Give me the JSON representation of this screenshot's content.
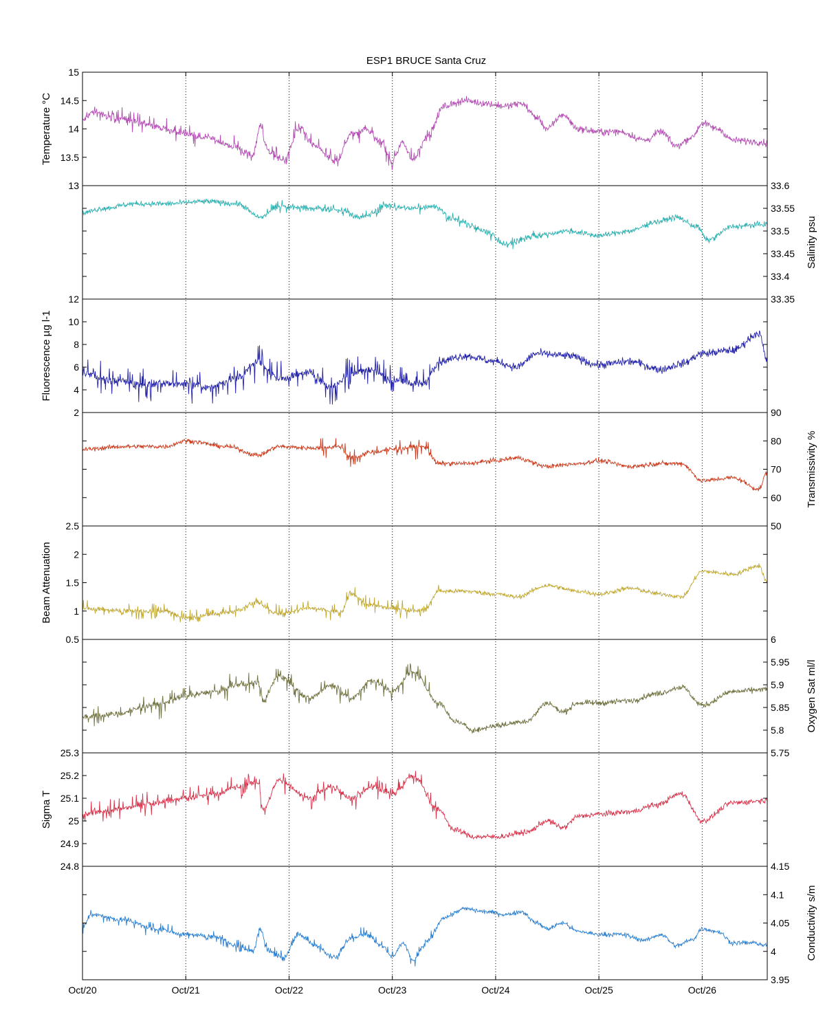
{
  "title": "ESP1 BRUCE Santa Cruz",
  "x_ticks": [
    "Oct/20",
    "Oct/21",
    "Oct/22",
    "Oct/23",
    "Oct/24",
    "Oct/25",
    "Oct/26"
  ],
  "chart_data": [
    {
      "type": "line",
      "name": "temperature",
      "label": "Temperature °C",
      "axis": "left",
      "color": "#b24cb2",
      "ylim": [
        13,
        15
      ],
      "ticks": [
        "13",
        "13.5",
        "14",
        "14.5",
        "15"
      ],
      "tick_values": [
        13,
        13.5,
        14,
        14.5,
        15
      ],
      "x_days": [
        0,
        0.1,
        0.3,
        0.6,
        0.9,
        1.2,
        1.45,
        1.65,
        1.72,
        1.8,
        1.95,
        2.1,
        2.25,
        2.45,
        2.6,
        2.75,
        2.9,
        3.0,
        3.1,
        3.2,
        3.35,
        3.5,
        3.7,
        3.9,
        4.1,
        4.25,
        4.4,
        4.5,
        4.65,
        4.8,
        5.0,
        5.2,
        5.45,
        5.6,
        5.75,
        5.9,
        6.0,
        6.15,
        6.3,
        6.5,
        6.63
      ],
      "y": [
        14.15,
        14.3,
        14.2,
        14.1,
        13.95,
        13.85,
        13.7,
        13.55,
        14.05,
        13.6,
        13.45,
        14.0,
        13.7,
        13.4,
        13.9,
        14.0,
        13.75,
        13.4,
        13.75,
        13.45,
        13.9,
        14.4,
        14.5,
        14.45,
        14.4,
        14.45,
        14.2,
        14.0,
        14.25,
        14.0,
        13.95,
        13.95,
        13.8,
        13.95,
        13.7,
        13.85,
        14.1,
        14.0,
        13.8,
        13.78,
        13.75
      ],
      "noise": 0.06,
      "spikes": 0.18,
      "spike_range": [
        0,
        3.4
      ]
    },
    {
      "type": "line",
      "name": "salinity",
      "label": "Salinity psu",
      "axis": "right",
      "color": "#2ab0b0",
      "ylim": [
        33.35,
        33.6
      ],
      "ticks": [
        "33.35",
        "33.4",
        "33.45",
        "33.5",
        "33.55",
        "33.6"
      ],
      "tick_values": [
        33.35,
        33.4,
        33.45,
        33.5,
        33.55,
        33.6
      ],
      "x_days": [
        0,
        0.2,
        0.5,
        0.8,
        1.2,
        1.5,
        1.72,
        1.9,
        2.2,
        2.5,
        2.7,
        2.95,
        3.2,
        3.4,
        3.6,
        3.9,
        4.1,
        4.4,
        4.7,
        5.0,
        5.3,
        5.55,
        5.75,
        5.95,
        6.05,
        6.3,
        6.63
      ],
      "y": [
        33.54,
        33.55,
        33.56,
        33.56,
        33.565,
        33.56,
        33.53,
        33.555,
        33.55,
        33.545,
        33.53,
        33.555,
        33.55,
        33.555,
        33.525,
        33.5,
        33.47,
        33.49,
        33.5,
        33.49,
        33.5,
        33.52,
        33.53,
        33.51,
        33.48,
        33.51,
        33.515
      ],
      "noise": 0.006,
      "spikes": 0.012,
      "spike_range": [
        1.7,
        4.4
      ]
    },
    {
      "type": "line",
      "name": "fluorescence",
      "label": "Fluorescence µg l-1",
      "axis": "left",
      "color": "#2020a8",
      "ylim": [
        2,
        12
      ],
      "ticks": [
        "2",
        "4",
        "6",
        "8",
        "10",
        "12"
      ],
      "tick_values": [
        2,
        4,
        6,
        8,
        10,
        12
      ],
      "x_days": [
        0,
        0.3,
        0.6,
        1.0,
        1.2,
        1.5,
        1.7,
        1.9,
        2.2,
        2.4,
        2.6,
        2.8,
        3.0,
        3.3,
        3.45,
        3.7,
        4.0,
        4.2,
        4.4,
        4.7,
        5.0,
        5.3,
        5.6,
        5.8,
        6.0,
        6.3,
        6.55,
        6.63
      ],
      "y": [
        5.5,
        4.8,
        4.5,
        4.6,
        4.2,
        5.0,
        6.5,
        5.0,
        5.5,
        4.2,
        5.5,
        5.8,
        4.8,
        4.5,
        6.5,
        7.0,
        6.5,
        6.0,
        7.2,
        7.0,
        6.2,
        6.5,
        5.8,
        6.3,
        7.2,
        7.5,
        9.0,
        6.5
      ],
      "noise": 0.35,
      "spikes": 1.6,
      "spike_range": [
        0,
        3.45
      ]
    },
    {
      "type": "line",
      "name": "transmissivity",
      "label": "Transmissivity %",
      "axis": "right",
      "color": "#cc3a1c",
      "ylim": [
        50,
        90
      ],
      "ticks": [
        "50",
        "60",
        "70",
        "80",
        "90"
      ],
      "tick_values": [
        50,
        60,
        70,
        80,
        90
      ],
      "x_days": [
        0,
        0.4,
        0.8,
        1.0,
        1.4,
        1.7,
        1.9,
        2.2,
        2.5,
        2.6,
        2.8,
        3.0,
        3.3,
        3.45,
        3.7,
        4.0,
        4.2,
        4.5,
        4.8,
        5.0,
        5.3,
        5.6,
        5.8,
        6.0,
        6.3,
        6.55,
        6.63
      ],
      "y": [
        77,
        78,
        78,
        80,
        78,
        75,
        78,
        77.5,
        78,
        74,
        76,
        77,
        78,
        72,
        72,
        73,
        74,
        71,
        72,
        73,
        71,
        72,
        72,
        66,
        67,
        63,
        69
      ],
      "noise": 0.8,
      "spikes": 3.5,
      "spike_range": [
        2.3,
        3.45
      ]
    },
    {
      "type": "line",
      "name": "beam-attenuation",
      "label": "Beam Attenuation",
      "axis": "left",
      "color": "#c0a830",
      "ylim": [
        0.5,
        2.5
      ],
      "ticks": [
        "0.5",
        "1",
        "1.5",
        "2",
        "2.5"
      ],
      "tick_values": [
        0.5,
        1,
        1.5,
        2,
        2.5
      ],
      "x_days": [
        0,
        0.4,
        0.8,
        1.0,
        1.4,
        1.7,
        1.9,
        2.2,
        2.5,
        2.6,
        2.8,
        3.0,
        3.3,
        3.45,
        3.7,
        4.0,
        4.2,
        4.5,
        4.8,
        5.0,
        5.3,
        5.6,
        5.8,
        6.0,
        6.3,
        6.55,
        6.63
      ],
      "y": [
        1.05,
        1.0,
        1.0,
        0.88,
        0.97,
        1.15,
        0.95,
        1.05,
        0.98,
        1.3,
        1.1,
        1.05,
        1.0,
        1.35,
        1.35,
        1.3,
        1.25,
        1.45,
        1.35,
        1.3,
        1.4,
        1.3,
        1.25,
        1.7,
        1.65,
        1.8,
        1.5
      ],
      "noise": 0.04,
      "spikes": 0.15,
      "spike_range": [
        0,
        3.45
      ]
    },
    {
      "type": "line",
      "name": "oxygen-sat",
      "label": "Oxygen Sat ml/l",
      "axis": "right",
      "color": "#707040",
      "ylim": [
        5.75,
        6.0
      ],
      "ticks": [
        "5.75",
        "5.8",
        "5.85",
        "5.9",
        "5.95",
        "6"
      ],
      "tick_values": [
        5.75,
        5.8,
        5.85,
        5.9,
        5.95,
        6.0
      ],
      "x_days": [
        0,
        0.3,
        0.7,
        1.0,
        1.3,
        1.5,
        1.7,
        1.75,
        1.9,
        2.2,
        2.4,
        2.6,
        2.8,
        3.0,
        3.2,
        3.45,
        3.6,
        3.8,
        4.0,
        4.3,
        4.5,
        4.65,
        4.8,
        5.0,
        5.3,
        5.55,
        5.8,
        6.0,
        6.3,
        6.63
      ],
      "y": [
        5.83,
        5.835,
        5.855,
        5.875,
        5.885,
        5.9,
        5.905,
        5.865,
        5.92,
        5.87,
        5.9,
        5.87,
        5.91,
        5.885,
        5.93,
        5.86,
        5.82,
        5.8,
        5.81,
        5.82,
        5.86,
        5.84,
        5.86,
        5.86,
        5.865,
        5.88,
        5.895,
        5.855,
        5.885,
        5.89
      ],
      "noise": 0.006,
      "spikes": 0.025,
      "spike_range": [
        0,
        3.45
      ]
    },
    {
      "type": "line",
      "name": "sigma-t",
      "label": "Sigma T",
      "axis": "left",
      "color": "#d83048",
      "ylim": [
        24.8,
        25.3
      ],
      "ticks": [
        "24.8",
        "24.9",
        "25",
        "25.1",
        "25.2",
        "25.3"
      ],
      "tick_values": [
        24.8,
        24.9,
        25.0,
        25.1,
        25.2,
        25.3
      ],
      "x_days": [
        0,
        0.3,
        0.7,
        1.0,
        1.3,
        1.5,
        1.7,
        1.75,
        1.9,
        2.2,
        2.4,
        2.6,
        2.8,
        3.0,
        3.2,
        3.45,
        3.6,
        3.8,
        4.0,
        4.3,
        4.5,
        4.65,
        4.8,
        5.0,
        5.3,
        5.55,
        5.8,
        6.0,
        6.3,
        6.63
      ],
      "y": [
        25.03,
        25.05,
        25.08,
        25.1,
        25.12,
        25.15,
        25.17,
        25.05,
        25.18,
        25.1,
        25.15,
        25.1,
        25.15,
        25.12,
        25.2,
        25.05,
        24.96,
        24.93,
        24.93,
        24.95,
        25.0,
        24.97,
        25.02,
        25.03,
        25.04,
        25.07,
        25.12,
        25.0,
        25.08,
        25.09
      ],
      "noise": 0.012,
      "spikes": 0.05,
      "spike_range": [
        0,
        3.45
      ]
    },
    {
      "type": "line",
      "name": "conductivity",
      "label": "Conductivity s/m",
      "axis": "right",
      "color": "#2a7ed0",
      "ylim": [
        3.95,
        4.15
      ],
      "ticks": [
        "3.95",
        "4",
        "4.05",
        "4.1",
        "4.15"
      ],
      "tick_values": [
        3.95,
        4.0,
        4.05,
        4.1,
        4.15
      ],
      "x_days": [
        0,
        0.1,
        0.4,
        0.7,
        1.0,
        1.3,
        1.5,
        1.65,
        1.72,
        1.8,
        1.95,
        2.1,
        2.25,
        2.45,
        2.6,
        2.75,
        2.9,
        3.0,
        3.1,
        3.2,
        3.35,
        3.5,
        3.7,
        3.9,
        4.1,
        4.25,
        4.4,
        4.5,
        4.65,
        4.8,
        5.0,
        5.2,
        5.45,
        5.6,
        5.75,
        5.9,
        6.0,
        6.15,
        6.3,
        6.5,
        6.63
      ],
      "y": [
        4.045,
        4.065,
        4.055,
        4.04,
        4.03,
        4.025,
        4.01,
        4.0,
        4.04,
        4.0,
        3.99,
        4.03,
        4.01,
        3.99,
        4.025,
        4.03,
        4.01,
        3.99,
        4.015,
        3.985,
        4.02,
        4.06,
        4.075,
        4.07,
        4.065,
        4.07,
        4.05,
        4.04,
        4.05,
        4.035,
        4.03,
        4.03,
        4.02,
        4.03,
        4.01,
        4.02,
        4.04,
        4.035,
        4.015,
        4.015,
        4.01
      ],
      "noise": 0.004,
      "spikes": 0.012,
      "spike_range": [
        0,
        3.45
      ]
    }
  ]
}
